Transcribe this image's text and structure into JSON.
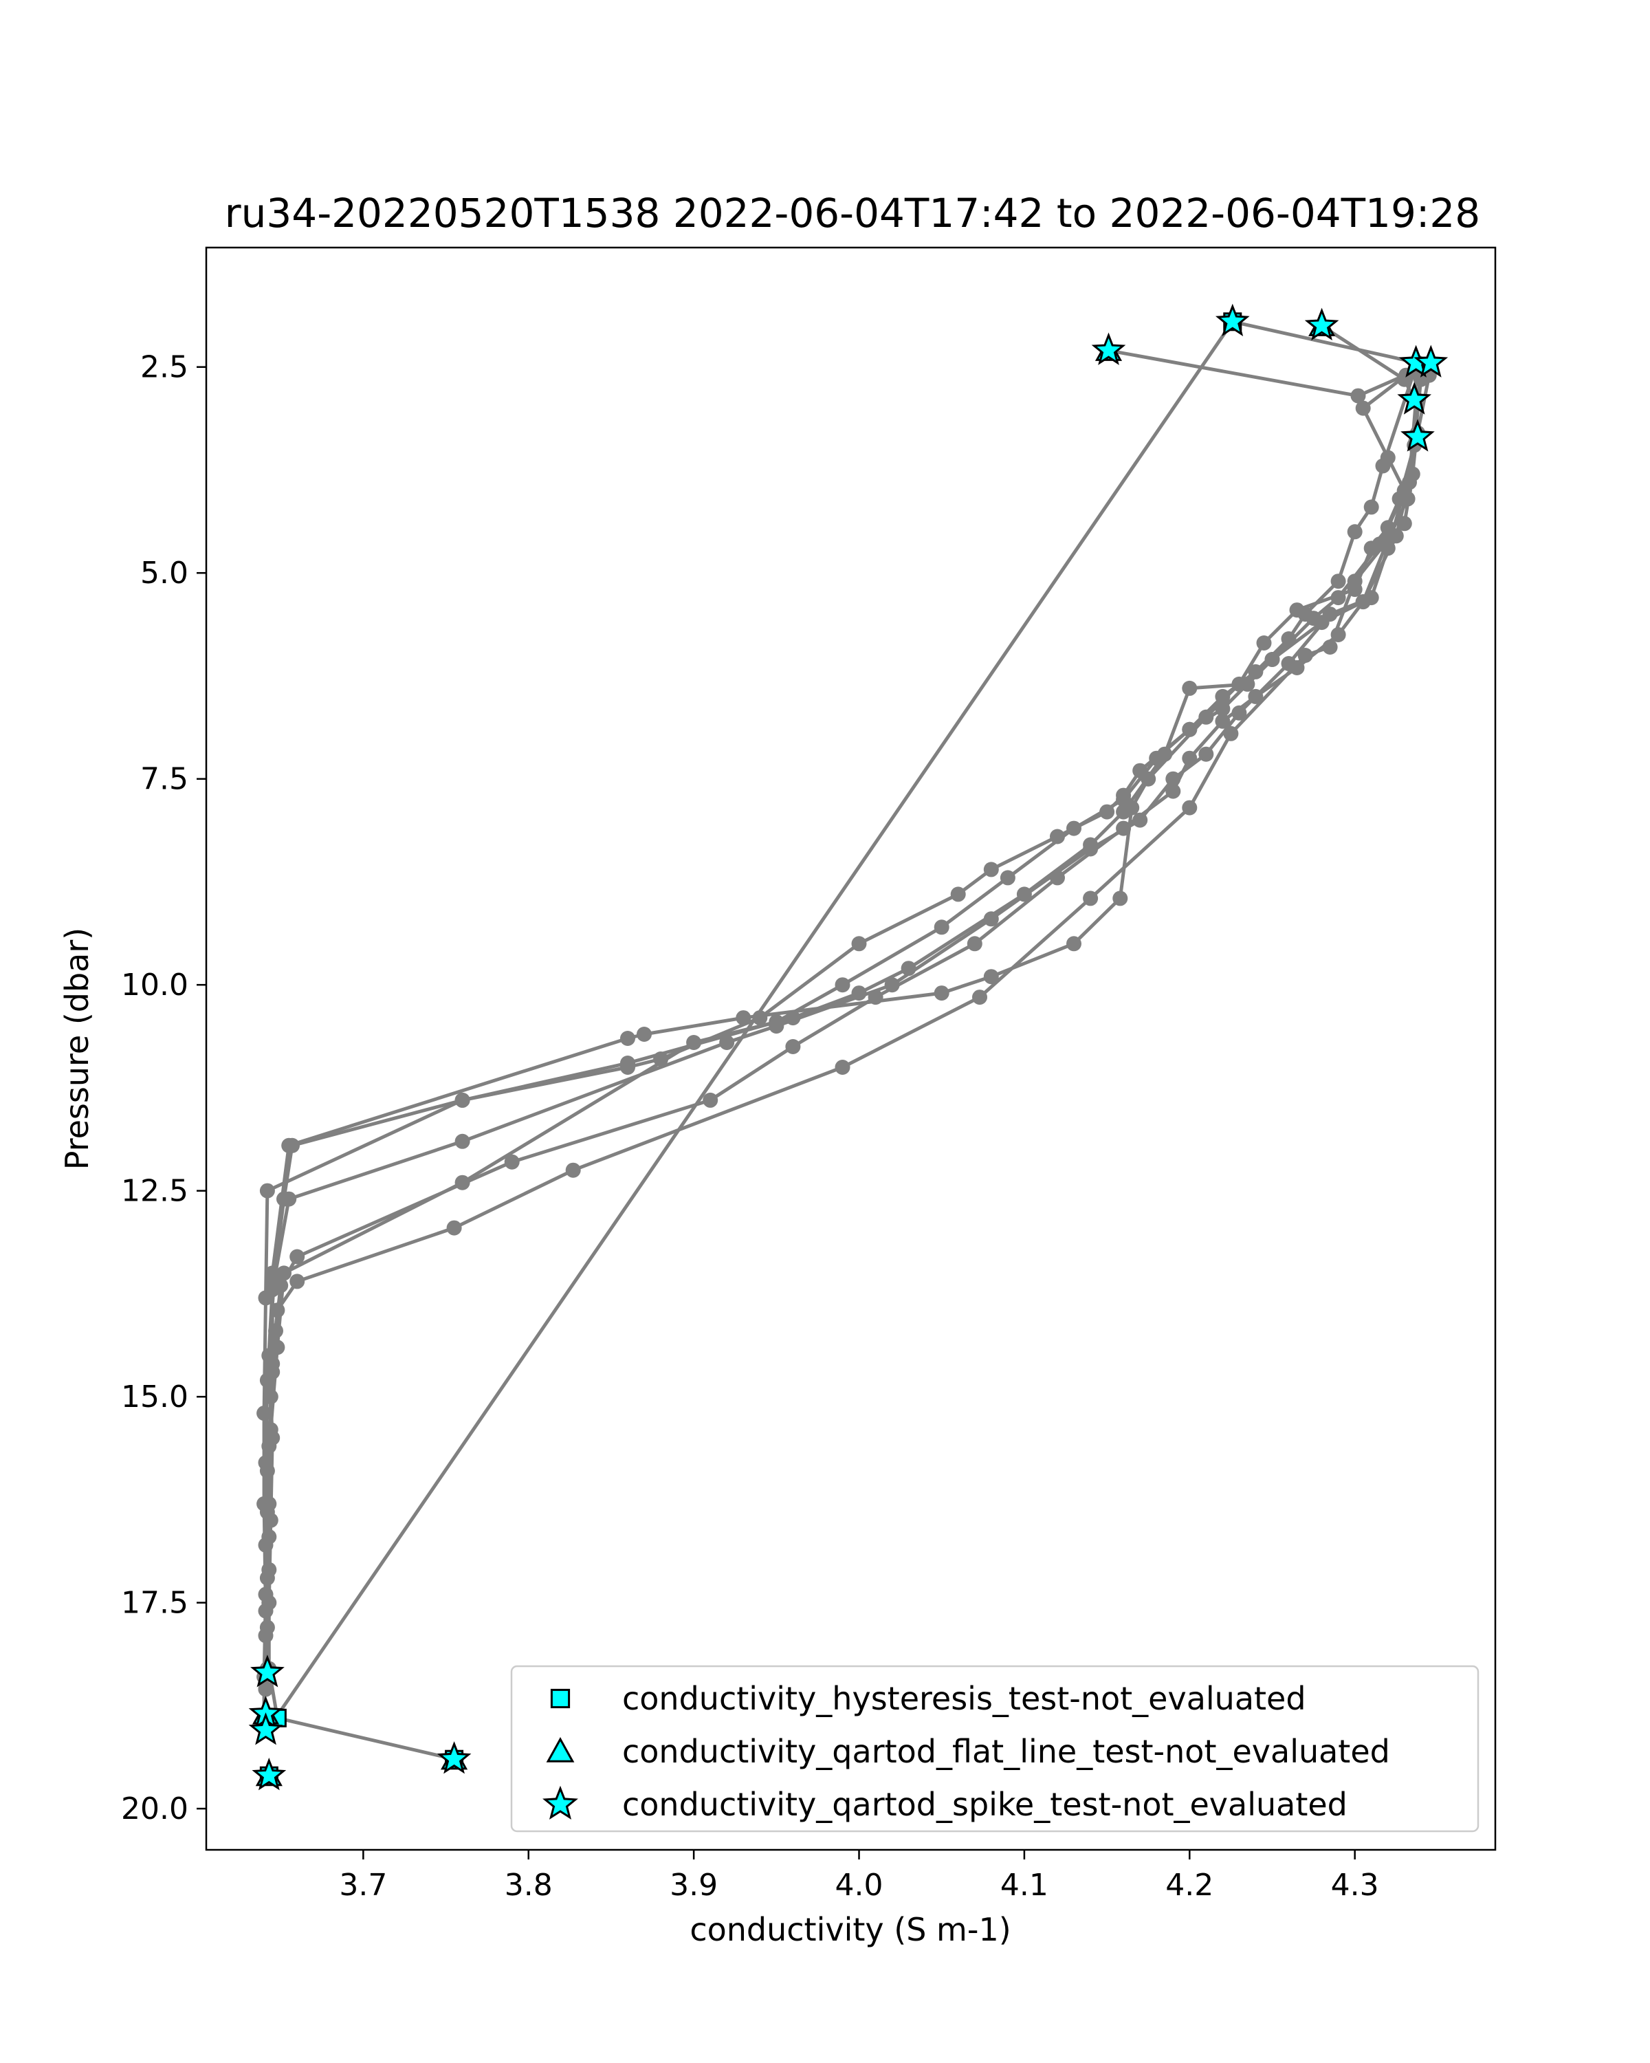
{
  "chart_data": {
    "type": "line",
    "title": "ru34-20220520T1538 2022-06-04T17:42 to 2022-06-04T19:28",
    "xlabel": "conductivity (S m-1)",
    "ylabel": "Pressure (dbar)",
    "xlim": [
      3.605,
      4.385
    ],
    "ylim": [
      20.5,
      1.05
    ],
    "y_inverted": true,
    "grid": false,
    "legend_position": "lower-right",
    "xticks": [
      3.7,
      3.8,
      3.9,
      4.0,
      4.1,
      4.2,
      4.3
    ],
    "xtick_labels": [
      "3.7",
      "3.8",
      "3.9",
      "4.0",
      "4.1",
      "4.2",
      "4.3"
    ],
    "yticks": [
      2.5,
      5.0,
      7.5,
      10.0,
      12.5,
      15.0,
      17.5,
      20.0
    ],
    "ytick_labels": [
      "2.5",
      "5.0",
      "7.5",
      "10.0",
      "12.5",
      "15.0",
      "17.5",
      "20.0"
    ],
    "line_color": "#808080",
    "series": [
      {
        "role": "profile",
        "points": [
          [
            4.151,
            2.3
          ],
          [
            4.302,
            2.85
          ],
          [
            4.336,
            2.55
          ],
          [
            4.317,
            3.7
          ],
          [
            4.31,
            4.2
          ],
          [
            4.3,
            4.5
          ],
          [
            4.29,
            5.1
          ],
          [
            4.27,
            5.5
          ],
          [
            4.26,
            5.8
          ],
          [
            4.24,
            6.2
          ],
          [
            4.22,
            6.5
          ],
          [
            4.2,
            6.9
          ],
          [
            4.17,
            7.4
          ],
          [
            4.16,
            7.7
          ],
          [
            4.15,
            7.9
          ],
          [
            4.12,
            8.2
          ],
          [
            4.08,
            8.6
          ],
          [
            4.06,
            8.9
          ],
          [
            4.0,
            9.5
          ],
          [
            3.94,
            10.4
          ],
          [
            3.88,
            10.9
          ],
          [
            3.86,
            11.0
          ],
          [
            3.76,
            11.4
          ],
          [
            3.657,
            11.95
          ],
          [
            3.652,
            12.6
          ],
          [
            3.645,
            13.7
          ],
          [
            3.642,
            14.8
          ],
          [
            3.641,
            15.8
          ],
          [
            3.641,
            16.8
          ],
          [
            3.642,
            17.8
          ],
          [
            3.642,
            18.3
          ]
        ]
      },
      {
        "role": "profile",
        "points": [
          [
            3.642,
            18.35
          ],
          [
            3.643,
            17.5
          ],
          [
            3.644,
            16.5
          ],
          [
            3.645,
            15.5
          ],
          [
            3.643,
            14.5
          ],
          [
            3.646,
            13.6
          ],
          [
            3.655,
            12.6
          ],
          [
            3.76,
            11.9
          ],
          [
            3.92,
            10.7
          ],
          [
            3.95,
            10.5
          ],
          [
            4.02,
            10.0
          ],
          [
            4.08,
            9.2
          ],
          [
            4.14,
            8.35
          ],
          [
            4.17,
            8.0
          ],
          [
            4.19,
            7.5
          ],
          [
            4.21,
            7.2
          ],
          [
            4.23,
            6.7
          ],
          [
            4.26,
            6.1
          ],
          [
            4.285,
            5.5
          ],
          [
            4.31,
            5.3
          ],
          [
            4.32,
            4.7
          ],
          [
            4.33,
            4.0
          ],
          [
            4.338,
            3.3
          ]
        ]
      },
      {
        "role": "profile",
        "points": [
          [
            4.338,
            3.3
          ],
          [
            4.333,
            3.9
          ],
          [
            4.325,
            4.55
          ],
          [
            4.305,
            5.35
          ],
          [
            4.28,
            5.6
          ],
          [
            4.25,
            6.05
          ],
          [
            4.22,
            6.65
          ],
          [
            4.2,
            6.9
          ],
          [
            4.18,
            7.25
          ],
          [
            4.16,
            7.75
          ],
          [
            4.13,
            8.1
          ],
          [
            4.09,
            8.7
          ],
          [
            4.05,
            9.3
          ],
          [
            3.99,
            10.0
          ],
          [
            3.95,
            10.45
          ],
          [
            3.86,
            10.95
          ],
          [
            3.76,
            11.4
          ],
          [
            3.642,
            12.5
          ],
          [
            3.641,
            13.8
          ],
          [
            3.64,
            15.2
          ],
          [
            3.64,
            16.3
          ],
          [
            3.641,
            17.6
          ],
          [
            3.641,
            18.55
          ]
        ]
      },
      {
        "role": "profile",
        "points": [
          [
            3.641,
            18.55
          ],
          [
            3.642,
            17.2
          ],
          [
            3.643,
            16.3
          ],
          [
            3.644,
            15.0
          ],
          [
            3.647,
            14.2
          ],
          [
            3.65,
            13.65
          ],
          [
            3.66,
            13.3
          ],
          [
            3.79,
            12.15
          ],
          [
            3.91,
            11.4
          ],
          [
            3.96,
            10.75
          ],
          [
            4.01,
            10.15
          ],
          [
            4.07,
            9.5
          ],
          [
            4.12,
            8.7
          ],
          [
            4.16,
            8.1
          ],
          [
            4.19,
            7.65
          ],
          [
            4.2,
            7.25
          ],
          [
            4.22,
            6.8
          ],
          [
            4.24,
            6.5
          ],
          [
            4.265,
            6.15
          ],
          [
            4.29,
            5.75
          ],
          [
            4.305,
            5.35
          ],
          [
            4.32,
            4.6
          ],
          [
            4.332,
            4.1
          ],
          [
            4.337,
            2.9
          ]
        ]
      },
      {
        "role": "profile",
        "points": [
          [
            4.337,
            2.9
          ],
          [
            4.34,
            2.65
          ],
          [
            4.336,
            3.45
          ],
          [
            4.327,
            4.1
          ],
          [
            4.315,
            4.65
          ],
          [
            4.29,
            5.3
          ],
          [
            4.275,
            5.55
          ],
          [
            4.25,
            6.05
          ],
          [
            4.235,
            6.35
          ],
          [
            4.2,
            6.4
          ],
          [
            4.185,
            7.2
          ],
          [
            4.16,
            7.9
          ],
          [
            4.14,
            8.3
          ],
          [
            4.1,
            8.9
          ],
          [
            4.03,
            9.8
          ],
          [
            4.0,
            10.1
          ],
          [
            3.96,
            10.4
          ],
          [
            3.9,
            10.7
          ],
          [
            3.76,
            12.4
          ],
          [
            3.652,
            13.5
          ],
          [
            3.648,
            14.4
          ],
          [
            3.644,
            15.4
          ],
          [
            3.642,
            16.4
          ],
          [
            3.641,
            17.4
          ],
          [
            3.64,
            18.4
          ],
          [
            3.64,
            18.95
          ]
        ]
      },
      {
        "role": "profile",
        "points": [
          [
            3.64,
            18.95
          ],
          [
            3.641,
            17.9
          ],
          [
            3.643,
            16.7
          ],
          [
            3.643,
            15.6
          ],
          [
            3.645,
            14.6
          ],
          [
            3.648,
            13.95
          ],
          [
            3.66,
            13.6
          ],
          [
            3.755,
            12.95
          ],
          [
            3.827,
            12.25
          ],
          [
            3.99,
            11.0
          ],
          [
            4.073,
            10.15
          ],
          [
            4.14,
            8.95
          ],
          [
            4.2,
            7.85
          ],
          [
            4.225,
            6.95
          ],
          [
            4.27,
            6.0
          ],
          [
            4.285,
            5.9
          ],
          [
            4.3,
            5.1
          ],
          [
            4.32,
            4.6
          ],
          [
            4.33,
            4.4
          ],
          [
            4.335,
            3.8
          ],
          [
            4.337,
            3.4
          ],
          [
            4.345,
            2.6
          ],
          [
            4.337,
            2.45
          ]
        ]
      },
      {
        "role": "profile",
        "points": [
          [
            4.337,
            2.45
          ],
          [
            4.331,
            2.6
          ],
          [
            4.305,
            3.0
          ],
          [
            4.32,
            3.6
          ],
          [
            4.33,
            4.0
          ],
          [
            4.32,
            4.45
          ],
          [
            4.31,
            4.7
          ],
          [
            4.3,
            5.2
          ],
          [
            4.265,
            5.45
          ],
          [
            4.245,
            5.85
          ],
          [
            4.23,
            6.35
          ],
          [
            4.21,
            6.75
          ],
          [
            4.175,
            7.5
          ],
          [
            4.165,
            7.85
          ],
          [
            4.158,
            8.95
          ],
          [
            4.13,
            9.5
          ],
          [
            4.08,
            9.9
          ],
          [
            4.05,
            10.1
          ],
          [
            3.93,
            10.4
          ],
          [
            3.87,
            10.6
          ],
          [
            3.86,
            10.65
          ],
          [
            3.655,
            11.95
          ],
          [
            3.645,
            13.5
          ],
          [
            3.645,
            14.7
          ],
          [
            3.642,
            15.9
          ],
          [
            3.643,
            17.1
          ],
          [
            3.643,
            18.3
          ],
          [
            3.648,
            18.9
          ]
        ]
      },
      {
        "role": "profile",
        "points": [
          [
            3.648,
            18.9
          ],
          [
            3.755,
            19.4
          ]
        ]
      },
      {
        "role": "connector",
        "points": [
          [
            3.647,
            18.9
          ],
          [
            4.226,
            1.95
          ],
          [
            4.338,
            2.45
          ],
          [
            4.336,
            2.9
          ],
          [
            4.33,
            2.65
          ],
          [
            4.28,
            2.0
          ]
        ]
      }
    ],
    "flag_markers": [
      {
        "shape": "star",
        "points": [
          [
            4.151,
            2.3
          ],
          [
            4.226,
            1.95
          ],
          [
            4.28,
            2.0
          ],
          [
            4.337,
            2.45
          ],
          [
            4.346,
            2.45
          ],
          [
            4.336,
            2.9
          ],
          [
            4.338,
            3.35
          ],
          [
            3.642,
            18.35
          ],
          [
            3.641,
            18.85
          ],
          [
            3.641,
            19.05
          ],
          [
            3.643,
            19.6
          ],
          [
            3.755,
            19.4
          ]
        ]
      },
      {
        "shape": "square",
        "points": [
          [
            4.226,
            1.95
          ],
          [
            3.648,
            18.9
          ],
          [
            3.755,
            19.4
          ],
          [
            3.643,
            19.6
          ]
        ]
      },
      {
        "shape": "triangle",
        "points": [
          [
            4.151,
            2.3
          ],
          [
            4.28,
            2.0
          ],
          [
            3.641,
            18.85
          ],
          [
            3.643,
            19.6
          ],
          [
            3.755,
            19.4
          ]
        ]
      }
    ],
    "marker_color": "#00ffff",
    "legend": [
      {
        "shape": "square",
        "label": "conductivity_hysteresis_test-not_evaluated"
      },
      {
        "shape": "triangle",
        "label": "conductivity_qartod_flat_line_test-not_evaluated"
      },
      {
        "shape": "star",
        "label": "conductivity_qartod_spike_test-not_evaluated"
      }
    ]
  }
}
